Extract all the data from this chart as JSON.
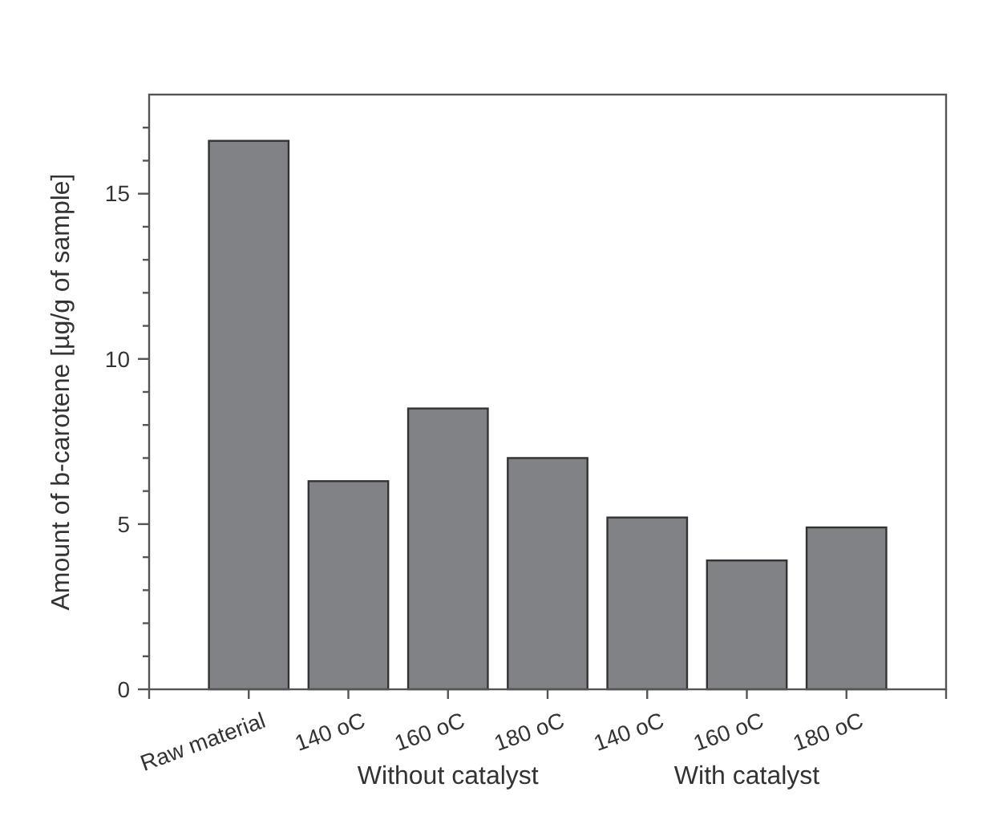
{
  "chart_data": {
    "type": "bar",
    "ylabel": "Amount of b-carotene [µg/g of sample]",
    "categories": [
      "Raw material",
      "140 oC",
      "160 oC",
      "180 oC",
      "140 oC",
      "160 oC",
      "180 oC"
    ],
    "values": [
      16.6,
      6.3,
      8.5,
      7.0,
      5.2,
      3.9,
      4.9
    ],
    "color": "#808285",
    "ylim": [
      0,
      18
    ],
    "yticks": [
      0,
      {
        "value": 1,
        "label": null
      },
      {
        "value": 2,
        "label": null
      },
      {
        "value": 3,
        "label": null
      },
      {
        "value": 4,
        "label": null
      },
      5,
      {
        "value": 6,
        "label": null
      },
      {
        "value": 7,
        "label": null
      },
      {
        "value": 8,
        "label": null
      },
      {
        "value": 9,
        "label": null
      },
      10,
      {
        "value": 11,
        "label": null
      },
      {
        "value": 12,
        "label": null
      },
      {
        "value": 13,
        "label": null
      },
      {
        "value": 14,
        "label": null
      },
      15,
      {
        "value": 16,
        "label": null
      },
      {
        "value": 17,
        "label": null
      }
    ],
    "annotations": [
      "Without catalyst",
      "With catalyst"
    ],
    "grid": false
  }
}
